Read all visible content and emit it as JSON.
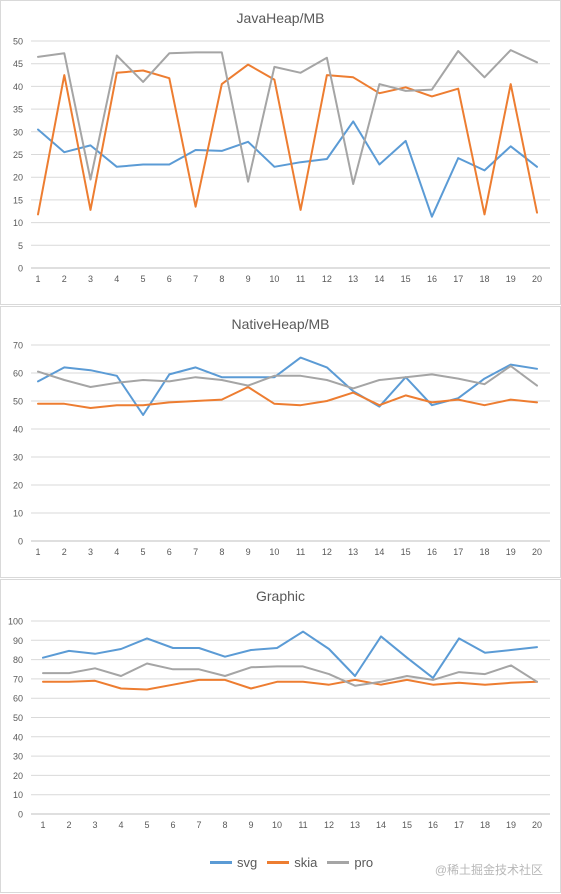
{
  "colors": {
    "svg": "#5b9bd5",
    "skia": "#ed7d31",
    "pro": "#a5a5a5",
    "grid": "#d9d9d9",
    "text": "#595959"
  },
  "legend": {
    "svg": "svg",
    "skia": "skia",
    "pro": "pro"
  },
  "watermark": "@稀土掘金技术社区",
  "chart_data": [
    {
      "type": "line",
      "title": "JavaHeap/MB",
      "x": [
        1,
        2,
        3,
        4,
        5,
        6,
        7,
        8,
        9,
        10,
        11,
        12,
        13,
        14,
        15,
        16,
        17,
        18,
        19,
        20
      ],
      "ylim": [
        0,
        50
      ],
      "yticks": [
        0,
        5,
        10,
        15,
        20,
        25,
        30,
        35,
        40,
        45,
        50
      ],
      "grid": true,
      "series": [
        {
          "name": "svg",
          "values": [
            30.5,
            25.5,
            27,
            22.3,
            22.8,
            22.8,
            26,
            25.8,
            27.8,
            22.3,
            23.3,
            24,
            32.3,
            22.8,
            28,
            11.3,
            24.2,
            21.5,
            26.8,
            22.3
          ]
        },
        {
          "name": "skia",
          "values": [
            11.8,
            42.5,
            12.8,
            43,
            43.5,
            41.8,
            13.5,
            40.5,
            44.8,
            41.5,
            12.8,
            42.5,
            42,
            38.5,
            39.8,
            37.8,
            39.5,
            11.8,
            40.5,
            12.2
          ]
        },
        {
          "name": "pro",
          "values": [
            46.5,
            47.3,
            19.5,
            46.8,
            41,
            47.3,
            47.5,
            47.5,
            19,
            44.3,
            43,
            46.3,
            18.5,
            40.5,
            39,
            39.3,
            47.8,
            42,
            48,
            45.3
          ]
        }
      ]
    },
    {
      "type": "line",
      "title": "NativeHeap/MB",
      "x": [
        1,
        2,
        3,
        4,
        5,
        6,
        7,
        8,
        9,
        10,
        11,
        12,
        13,
        14,
        15,
        16,
        17,
        18,
        19,
        20
      ],
      "ylim": [
        0,
        70
      ],
      "yticks": [
        0,
        10,
        20,
        30,
        40,
        50,
        60,
        70
      ],
      "grid": true,
      "series": [
        {
          "name": "svg",
          "values": [
            57,
            62,
            61,
            59,
            45,
            59.5,
            62,
            58.5,
            58.5,
            58.5,
            65.5,
            62,
            53.5,
            48,
            58.5,
            48.5,
            51,
            58,
            63,
            61.5
          ]
        },
        {
          "name": "skia",
          "values": [
            49,
            49,
            47.5,
            48.5,
            48.5,
            49.5,
            50,
            50.5,
            55,
            49,
            48.5,
            50,
            53,
            48.5,
            52,
            49.5,
            50.5,
            48.5,
            50.5,
            49.5
          ]
        },
        {
          "name": "pro",
          "values": [
            60.5,
            57.5,
            55,
            56.5,
            57.5,
            57,
            58.5,
            57.5,
            55.5,
            59,
            59,
            57.5,
            54.5,
            57.5,
            58.5,
            59.5,
            58,
            56,
            62.5,
            55.5
          ]
        }
      ]
    },
    {
      "type": "line",
      "title": "Graphic",
      "x": [
        1,
        2,
        3,
        4,
        5,
        6,
        7,
        8,
        9,
        10,
        11,
        12,
        13,
        14,
        15,
        16,
        17,
        18,
        19,
        20
      ],
      "ylim": [
        0,
        100
      ],
      "yticks": [
        0,
        10,
        20,
        30,
        40,
        50,
        60,
        70,
        80,
        90,
        100
      ],
      "grid": true,
      "series": [
        {
          "name": "svg",
          "values": [
            81,
            84.5,
            83,
            85.5,
            91,
            86,
            86,
            81.5,
            85,
            86,
            94.5,
            85.5,
            71.5,
            92,
            81,
            70.5,
            91,
            83.5,
            85,
            86.5
          ]
        },
        {
          "name": "skia",
          "values": [
            68.5,
            68.5,
            69,
            65,
            64.5,
            67,
            69.5,
            69.5,
            65,
            68.5,
            68.5,
            67,
            69.5,
            67,
            69.5,
            67,
            68,
            67,
            68,
            68.5
          ]
        },
        {
          "name": "pro",
          "values": [
            73,
            73,
            75.5,
            71.5,
            78,
            75,
            75,
            71.5,
            76,
            76.5,
            76.5,
            72.5,
            66.5,
            68.5,
            71.5,
            69.5,
            73.5,
            72.5,
            77,
            68.5
          ]
        }
      ]
    }
  ]
}
